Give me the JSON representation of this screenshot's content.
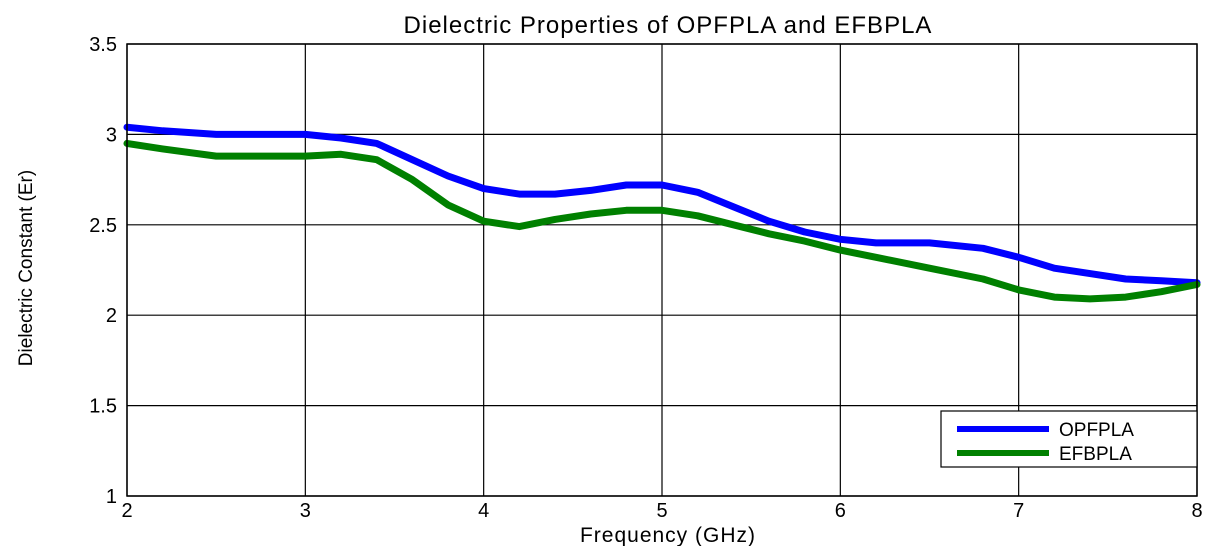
{
  "chart_data": {
    "type": "line",
    "title": "Dielectric Properties of OPFPLA and EFBPLA",
    "xlabel": "Frequency (GHz)",
    "ylabel": "Dielectric Constant (Er)",
    "xlim": [
      2,
      8
    ],
    "ylim": [
      1,
      3.5
    ],
    "x_ticks": [
      "2",
      "3",
      "4",
      "5",
      "6",
      "7",
      "8"
    ],
    "y_ticks": [
      "1",
      "1.5",
      "2",
      "2.5",
      "3",
      "3.5"
    ],
    "grid": true,
    "legend_position": "bottom-right",
    "series": [
      {
        "name": "OPFPLA",
        "color": "#0000FF",
        "x": [
          2.0,
          2.2,
          2.5,
          2.8,
          3.0,
          3.2,
          3.4,
          3.6,
          3.8,
          4.0,
          4.2,
          4.4,
          4.6,
          4.8,
          5.0,
          5.2,
          5.4,
          5.6,
          5.8,
          6.0,
          6.2,
          6.5,
          6.8,
          7.0,
          7.2,
          7.4,
          7.6,
          7.8,
          8.0
        ],
        "values": [
          3.04,
          3.02,
          3.0,
          3.0,
          3.0,
          2.98,
          2.95,
          2.86,
          2.77,
          2.7,
          2.67,
          2.67,
          2.69,
          2.72,
          2.72,
          2.68,
          2.6,
          2.52,
          2.46,
          2.42,
          2.4,
          2.4,
          2.37,
          2.32,
          2.26,
          2.23,
          2.2,
          2.19,
          2.18
        ]
      },
      {
        "name": "EFBPLA",
        "color": "#008000",
        "x": [
          2.0,
          2.2,
          2.5,
          2.8,
          3.0,
          3.2,
          3.4,
          3.6,
          3.8,
          4.0,
          4.2,
          4.4,
          4.6,
          4.8,
          5.0,
          5.2,
          5.4,
          5.6,
          5.8,
          6.0,
          6.2,
          6.5,
          6.8,
          7.0,
          7.2,
          7.4,
          7.6,
          7.8,
          8.0
        ],
        "values": [
          2.95,
          2.92,
          2.88,
          2.88,
          2.88,
          2.89,
          2.86,
          2.75,
          2.61,
          2.52,
          2.49,
          2.53,
          2.56,
          2.58,
          2.58,
          2.55,
          2.5,
          2.45,
          2.41,
          2.36,
          2.32,
          2.26,
          2.2,
          2.14,
          2.1,
          2.09,
          2.1,
          2.13,
          2.17
        ]
      }
    ]
  }
}
